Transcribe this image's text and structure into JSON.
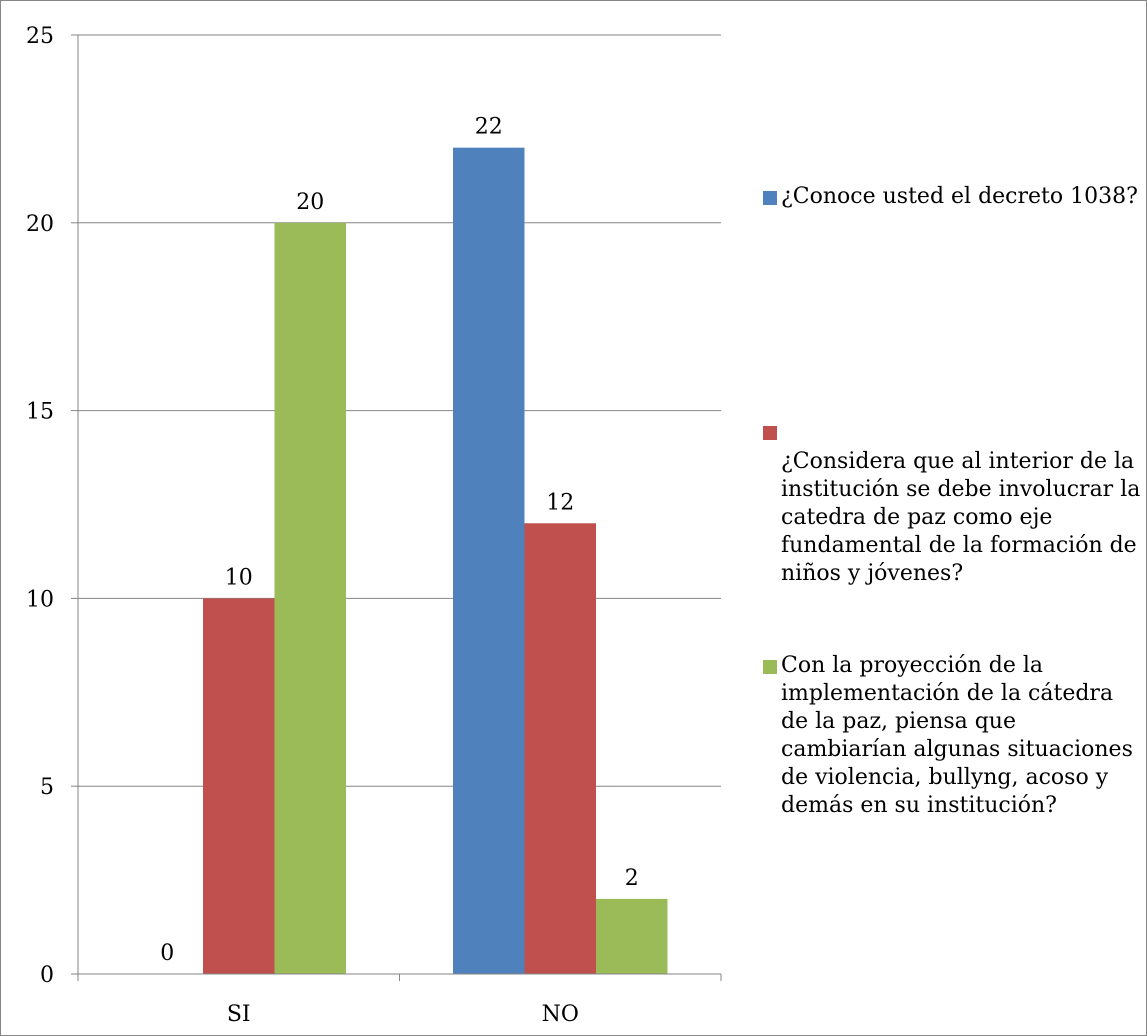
{
  "chart_data": {
    "type": "bar",
    "categories": [
      "SI",
      "NO"
    ],
    "series": [
      {
        "name": "¿Conoce usted el decreto 1038?",
        "values": [
          0,
          22
        ],
        "color": "#4f81bd"
      },
      {
        "name": "¿Considera que al interior de la institución se debe involucrar la catedra de  paz como eje fundamental de la formación de niños y jóvenes?",
        "values": [
          10,
          12
        ],
        "color": "#c0504d"
      },
      {
        "name": "Con la proyección de la implementación de la cátedra de la paz, piensa que cambiarían algunas situaciones de violencia, bullyng, acoso y demás en su institución?",
        "values": [
          20,
          2
        ],
        "color": "#9bbb59"
      }
    ],
    "title": "",
    "xlabel": "",
    "ylabel": "",
    "ylim": [
      0,
      25
    ],
    "yticks": [
      "0",
      "5",
      "10",
      "15",
      "20",
      "25"
    ],
    "grid": true,
    "data_labels": true,
    "legend_position": "right",
    "legend": {
      "items": [
        {
          "label": "¿Conoce usted el decreto 1038?",
          "color": "#4f81bd"
        },
        {
          "label": "¿Considera que al interior de la institución se debe involucrar la catedra de  paz como eje fundamental de la formación de niños y jóvenes?",
          "color": "#c0504d"
        },
        {
          "label": "Con la proyección de la implementación de la cátedra de la paz, piensa que cambiarían algunas situaciones de violencia, bullyng, acoso y demás en su institución?",
          "color": "#9bbb59"
        }
      ]
    }
  }
}
